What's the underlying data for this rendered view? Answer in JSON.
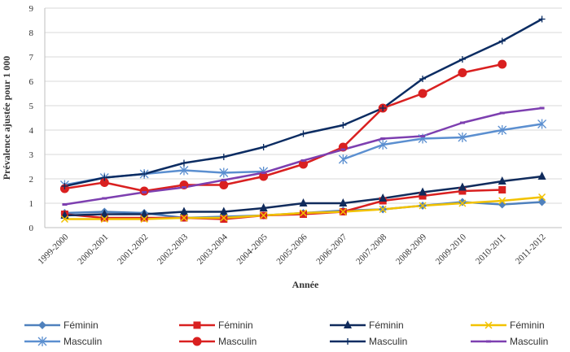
{
  "chart_data": {
    "type": "line",
    "title": "",
    "xlabel": "Année",
    "ylabel": "Prévalence ajustée pour 1 000",
    "ylim": [
      0,
      9
    ],
    "yticks": [
      0,
      1,
      2,
      3,
      4,
      5,
      6,
      7,
      8,
      9
    ],
    "grid": true,
    "legend_position": "bottom",
    "categories": [
      "1999-2000",
      "2000-2001",
      "2001-2002",
      "2002-2003",
      "2003-2004",
      "2004-2005",
      "2005-2006",
      "2006-2007",
      "2007-2008",
      "2008-2009",
      "2009-2010",
      "2010-2011",
      "2011-2012"
    ],
    "series": [
      {
        "name": "Féminin",
        "color": "#4F81BD",
        "marker": "diamond",
        "values": [
          0.6,
          0.65,
          0.6,
          0.4,
          0.45,
          0.5,
          0.6,
          0.7,
          0.75,
          0.9,
          1.05,
          0.95,
          1.05
        ]
      },
      {
        "name": "Féminin",
        "color": "#D92020",
        "marker": "square",
        "values": [
          0.55,
          0.4,
          0.4,
          0.4,
          0.35,
          0.5,
          0.55,
          0.65,
          1.1,
          1.3,
          1.5,
          1.55,
          null
        ]
      },
      {
        "name": "Féminin",
        "color": "#102B5C",
        "marker": "triangle",
        "values": [
          0.5,
          0.55,
          0.55,
          0.65,
          0.65,
          0.8,
          1.0,
          1.0,
          1.2,
          1.45,
          1.65,
          1.9,
          2.1
        ]
      },
      {
        "name": "Féminin",
        "color": "#F2C200",
        "marker": "x",
        "values": [
          0.35,
          0.35,
          0.35,
          0.4,
          0.4,
          0.5,
          0.6,
          0.65,
          0.75,
          0.9,
          1.0,
          1.1,
          1.25
        ]
      },
      {
        "name": "Masculin",
        "color": "#5B8FD0",
        "marker": "star",
        "values": [
          1.75,
          2.05,
          2.2,
          2.35,
          2.25,
          2.3,
          null,
          2.8,
          3.4,
          3.65,
          3.7,
          4.0,
          4.25
        ]
      },
      {
        "name": "Masculin",
        "color": "#D92020",
        "marker": "circle",
        "values": [
          1.6,
          1.85,
          1.5,
          1.75,
          1.75,
          2.1,
          2.6,
          3.3,
          4.9,
          5.5,
          6.35,
          6.7,
          null
        ]
      },
      {
        "name": "Masculin",
        "color": "#0B2C62",
        "marker": "plus",
        "values": [
          1.7,
          2.05,
          2.2,
          2.65,
          2.9,
          3.3,
          3.85,
          4.2,
          4.9,
          6.1,
          6.9,
          7.65,
          8.55
        ]
      },
      {
        "name": "Masculin",
        "color": "#7D3FB0",
        "marker": "dash",
        "values": [
          0.95,
          1.2,
          1.45,
          1.65,
          1.95,
          2.25,
          2.75,
          3.2,
          3.65,
          3.75,
          4.3,
          4.7,
          4.9
        ]
      }
    ]
  }
}
